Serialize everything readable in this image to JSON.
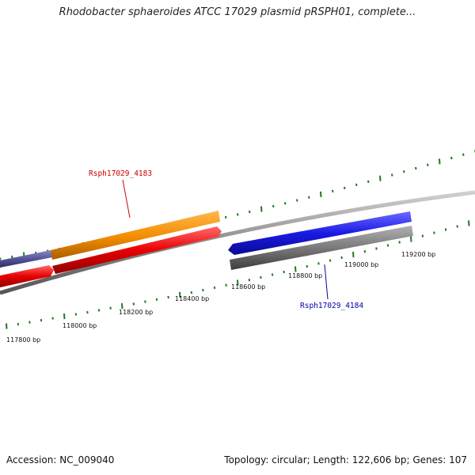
{
  "title": "Rhodobacter sphaeroides ATCC 17029 plasmid pRSPH01, complete...",
  "footer": {
    "accession": "Accession: NC_009040",
    "stats": "Topology: circular; Length: 122,606 bp; Genes: 107"
  },
  "colors": {
    "backbone": "#8c8c8c",
    "tick": "#1f7a1f",
    "orange_gene": "#f28c00",
    "red_gene": "#e80000",
    "blue_gene": "#1a1ae6",
    "gray_gene": "#777777",
    "purple_gene": "#555599",
    "label_red": "#cc0000",
    "label_blue": "#0000aa"
  },
  "scale_labels": [
    "117800 bp",
    "118000 bp",
    "118200 bp",
    "118400 bp",
    "118600 bp",
    "118800 bp",
    "119000 bp",
    "119200 bp"
  ],
  "genes": [
    {
      "name": "Rsph17029_4183",
      "color": "label_red"
    },
    {
      "name": "Rsph17029_4184",
      "color": "label_blue"
    }
  ]
}
